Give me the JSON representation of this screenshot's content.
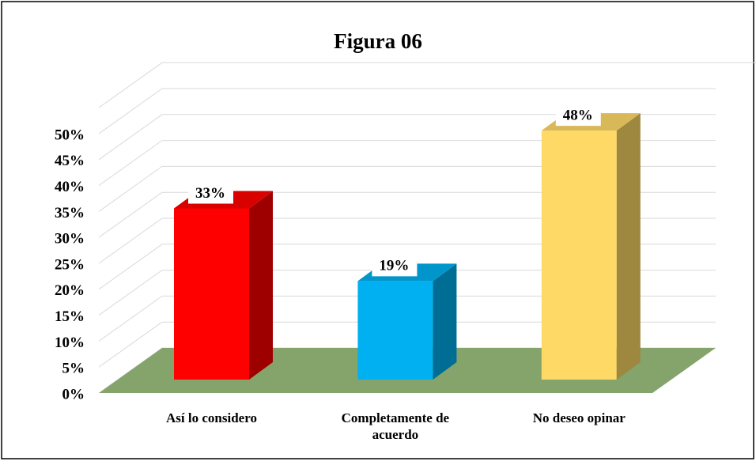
{
  "chart_data": {
    "type": "bar3d",
    "title": "Figura 06",
    "categories": [
      "Así lo considero",
      "Completamente de acuerdo",
      "No deseo opinar"
    ],
    "series": [
      {
        "values": [
          33,
          19,
          48
        ],
        "value_labels": [
          "33%",
          "19%",
          "48%"
        ],
        "colors": [
          "#ff0000",
          "#00b0f0",
          "#ffd966"
        ]
      }
    ],
    "ylim": [
      0,
      55
    ],
    "yticks": [
      {
        "value": 0,
        "label": "0%"
      },
      {
        "value": 5,
        "label": "5%"
      },
      {
        "value": 10,
        "label": "10%"
      },
      {
        "value": 15,
        "label": "15%"
      },
      {
        "value": 20,
        "label": "20%"
      },
      {
        "value": 25,
        "label": "25%"
      },
      {
        "value": 30,
        "label": "30%"
      },
      {
        "value": 35,
        "label": "35%"
      },
      {
        "value": 40,
        "label": "40%"
      },
      {
        "value": 45,
        "label": "45%"
      },
      {
        "value": 50,
        "label": "50%"
      }
    ],
    "grid": true,
    "floor_color": "#84a46c"
  }
}
